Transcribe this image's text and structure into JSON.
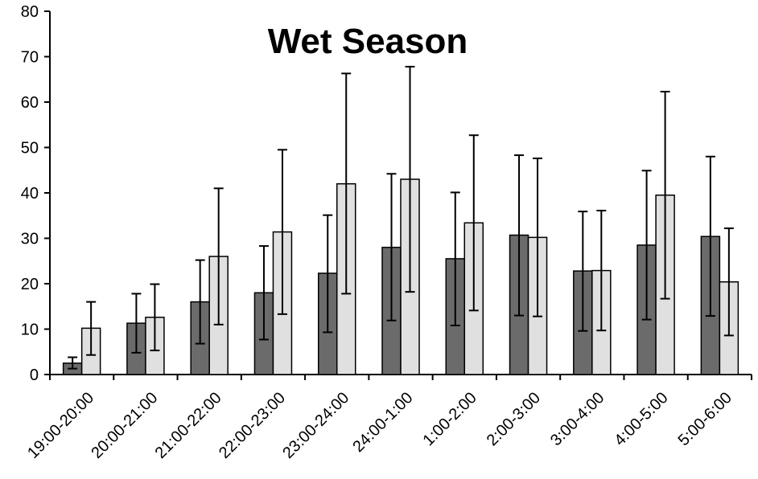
{
  "chart_data": {
    "type": "bar",
    "title": "Wet Season",
    "xlabel": "",
    "ylabel": "",
    "ylim": [
      0,
      80
    ],
    "yticks": [
      0,
      10,
      20,
      30,
      40,
      50,
      60,
      70,
      80
    ],
    "categories": [
      "19:00-20:00",
      "20:00-21:00",
      "21:00-22:00",
      "22:00-23:00",
      "23:00-24:00",
      "24:00-1:00",
      "1:00-2:00",
      "2:00-3:00",
      "3:00-4:00",
      "4:00-5:00",
      "5:00-6:00"
    ],
    "series": [
      {
        "color": "#6b6b6b",
        "values": [
          2.5,
          11.3,
          16.0,
          18.0,
          22.3,
          28.0,
          25.5,
          30.7,
          22.8,
          28.5,
          30.4
        ],
        "error_low": [
          1.3,
          4.8,
          6.8,
          7.7,
          9.3,
          11.9,
          10.8,
          13.0,
          9.6,
          12.1,
          12.9
        ],
        "error_high": [
          3.8,
          17.8,
          25.2,
          28.3,
          35.1,
          44.2,
          40.1,
          48.3,
          35.9,
          44.9,
          48.0
        ]
      },
      {
        "color": "#e0e0e0",
        "values": [
          10.2,
          12.6,
          26.0,
          31.4,
          42.0,
          43.0,
          33.4,
          30.2,
          22.9,
          39.5,
          20.4
        ],
        "error_low": [
          4.3,
          5.3,
          11.0,
          13.3,
          17.8,
          18.2,
          14.1,
          12.8,
          9.7,
          16.7,
          8.6
        ],
        "error_high": [
          16.0,
          19.9,
          41.0,
          49.5,
          66.3,
          67.8,
          52.7,
          47.6,
          36.1,
          62.3,
          32.2
        ]
      }
    ],
    "grid": false,
    "legend": "none"
  }
}
